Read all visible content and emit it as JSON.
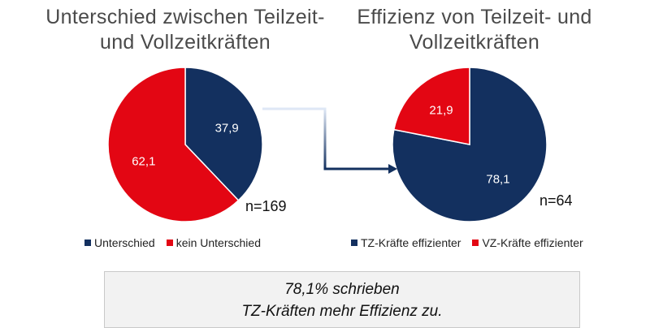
{
  "colors": {
    "navy": "#13305f",
    "red": "#e30613",
    "label": "#ffffff"
  },
  "charts": {
    "left": {
      "title_line1": "Unterschied zwischen Teilzeit-",
      "title_line2": "und Vollzeitkräften",
      "n": "n=169",
      "legend": [
        "Unterschied",
        "kein Unterschied"
      ]
    },
    "right": {
      "title_line1": "Effizienz von Teilzeit- und",
      "title_line2": "Vollzeitkräften",
      "n": "n=64",
      "legend": [
        "TZ-Kräfte effizienter",
        "VZ-Kräfte effizienter"
      ]
    }
  },
  "chart_data": [
    {
      "type": "pie",
      "title": "Unterschied zwischen Teilzeit- und Vollzeitkräften",
      "categories": [
        "Unterschied",
        "kein Unterschied"
      ],
      "values": [
        37.9,
        62.1
      ],
      "value_labels": [
        "37,9",
        "62,1"
      ],
      "colors": [
        "#13305f",
        "#e30613"
      ],
      "n": "n=169",
      "legend_position": "bottom"
    },
    {
      "type": "pie",
      "title": "Effizienz von Teilzeit- und Vollzeitkräften",
      "categories": [
        "TZ-Kräfte effizienter",
        "VZ-Kräfte effizienter"
      ],
      "values": [
        78.1,
        21.9
      ],
      "value_labels": [
        "78,1",
        "21,9"
      ],
      "colors": [
        "#13305f",
        "#e30613"
      ],
      "n": "n=64",
      "legend_position": "bottom"
    }
  ],
  "note": {
    "line1": "78,1% schrieben",
    "line2": "TZ-Kräften mehr Effizienz zu."
  }
}
